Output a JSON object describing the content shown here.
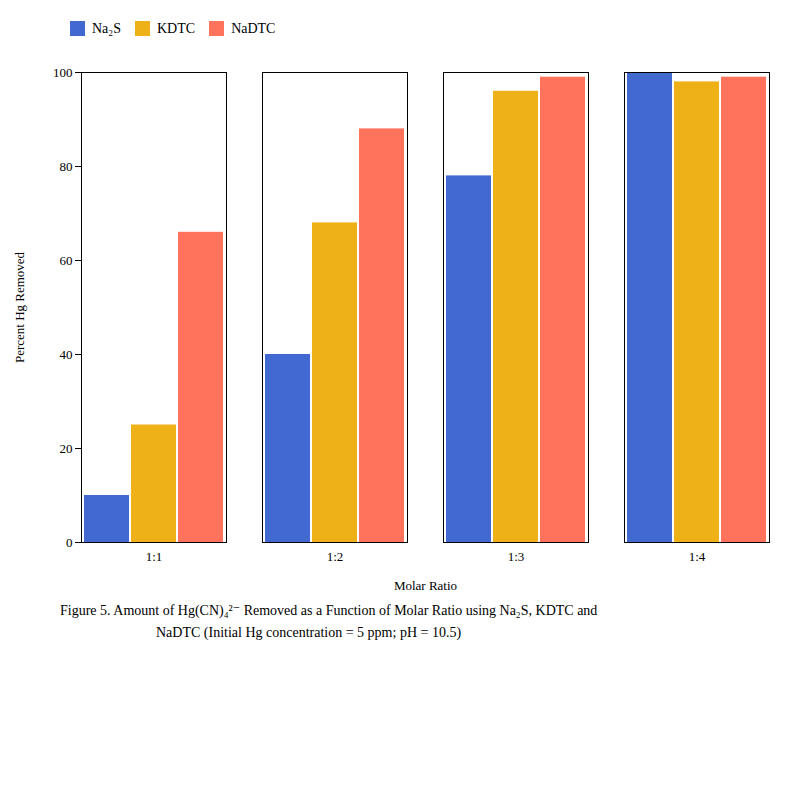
{
  "chart_data": {
    "type": "bar",
    "categories": [
      "1:1",
      "1:2",
      "1:3",
      "1:4"
    ],
    "series": [
      {
        "name": "Na₂S",
        "values": [
          10,
          40,
          78,
          100
        ]
      },
      {
        "name": "KDTC",
        "values": [
          25,
          68,
          96,
          98
        ]
      },
      {
        "name": "NaDTC",
        "values": [
          66,
          88,
          99,
          99
        ]
      }
    ],
    "xlabel": "Molar Ratio",
    "ylabel": "Percent Hg Removed",
    "ylim": [
      0,
      100
    ],
    "yticks": [
      0,
      20,
      40,
      60,
      80,
      100
    ],
    "grid": false,
    "legend": "upper left",
    "caption": [
      "Figure 5.  Amount of Hg(CN)₄²⁻ Removed as a Function of Molar Ratio using Na₂S, KDTC and",
      "NaDTC (Initial Hg concentration = 5 ppm;  pH = 10.5)"
    ]
  }
}
